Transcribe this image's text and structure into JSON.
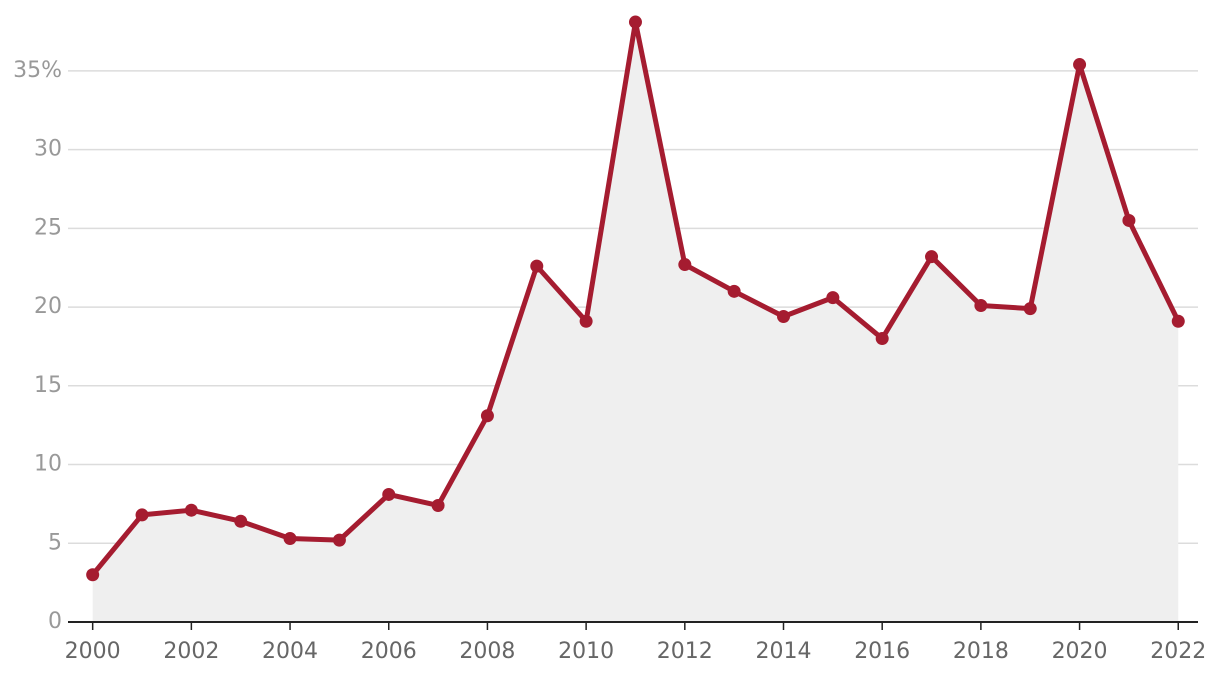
{
  "chart_data": {
    "type": "area-line",
    "x": [
      2000,
      2001,
      2002,
      2003,
      2004,
      2005,
      2006,
      2007,
      2008,
      2009,
      2010,
      2011,
      2012,
      2013,
      2014,
      2015,
      2016,
      2017,
      2018,
      2019,
      2020,
      2021,
      2022
    ],
    "values": [
      3.0,
      6.8,
      7.1,
      6.4,
      5.3,
      5.2,
      8.1,
      7.4,
      13.1,
      22.6,
      19.1,
      38.1,
      22.7,
      21.0,
      19.4,
      20.6,
      18.0,
      23.2,
      20.1,
      19.9,
      35.4,
      25.5,
      19.1
    ],
    "color": "#a51c30",
    "area_color": "#efefef",
    "xlim": [
      1999.5,
      2022.4
    ],
    "ylim": [
      0,
      39.5
    ],
    "xticks": [
      2000,
      2002,
      2004,
      2006,
      2008,
      2010,
      2012,
      2014,
      2016,
      2018,
      2020,
      2022
    ],
    "yticks": [
      0,
      5,
      10,
      15,
      20,
      25,
      30,
      {
        "value": 35,
        "label": "35%"
      }
    ],
    "grid": true
  }
}
